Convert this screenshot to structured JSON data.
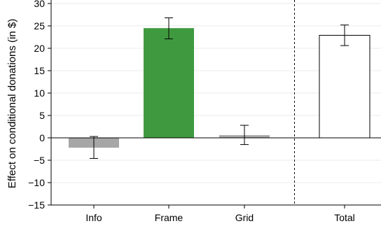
{
  "chart_data": {
    "type": "bar",
    "title": "",
    "xlabel": "",
    "ylabel": "Effect on conditional donations (in $)",
    "ylim": [
      -15,
      30
    ],
    "yticks": [
      30,
      25,
      20,
      15,
      10,
      5,
      0,
      -5,
      -10,
      -15
    ],
    "ytick_labels": [
      "30",
      "25",
      "20",
      "15",
      "10",
      "5",
      "0",
      "−5",
      "−10",
      "−15"
    ],
    "grid": true,
    "categories": [
      "Info",
      "Frame",
      "Grid",
      "Total"
    ],
    "values": [
      -2.2,
      24.5,
      0.6,
      22.9
    ],
    "error_low": [
      -4.6,
      22.1,
      -1.5,
      20.6
    ],
    "error_high": [
      0.3,
      26.8,
      2.8,
      25.2
    ],
    "colors": {
      "Info": "#a6a6a6",
      "Frame": "#3f9a3f",
      "Grid": "#a6a6a6",
      "Total": "#ffffff"
    },
    "separator_after_category": "Grid"
  }
}
